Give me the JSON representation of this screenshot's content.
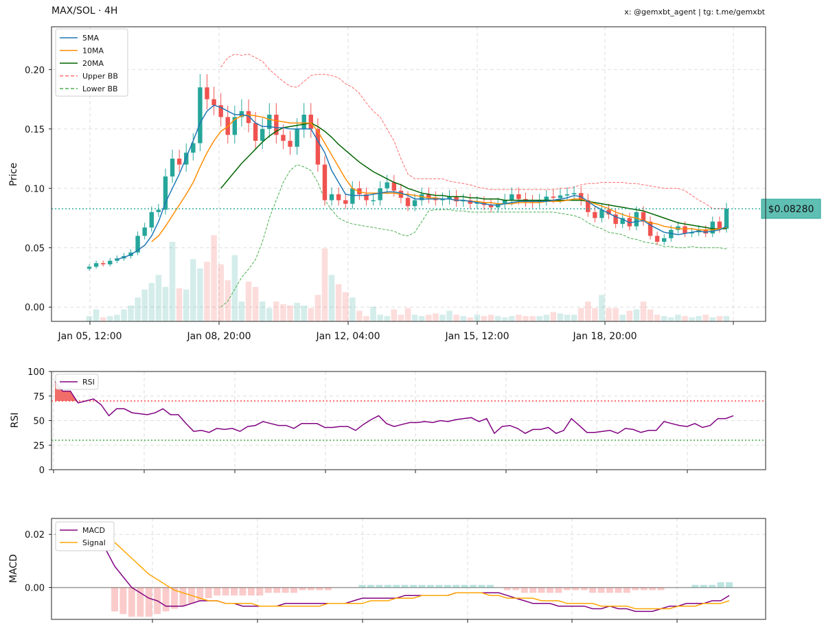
{
  "header": {
    "title": "MAX/SOL · 4H",
    "credit": "x: @gemxbt_agent | tg: t.me/gemxbt"
  },
  "price_tag": "$0.08280",
  "colors": {
    "bull": "#26a69a",
    "bear": "#ef5350",
    "ma5": "#1f77b4",
    "ma10": "#ff8c00",
    "ma20": "#006400",
    "bb_upper": "#ff6b6b",
    "bb_lower": "#4caf50",
    "rsi": "#800080",
    "macd": "#800080",
    "signal": "#ffa500",
    "last_price_line": "#26a69a"
  },
  "chart_data": [
    {
      "type": "candlestick",
      "ylabel": "Price",
      "ylim": [
        -0.012,
        0.236
      ],
      "yticks": [
        0.0,
        0.05,
        0.1,
        0.15,
        0.2
      ],
      "ytick_labels": [
        "0.00",
        "0.05",
        "0.10",
        "0.15",
        "0.20"
      ],
      "xtick_labels": [
        "Jan 05, 12:00",
        "Jan 08, 20:00",
        "Jan 12, 04:00",
        "Jan 15, 12:00",
        "Jan 18, 20:00"
      ],
      "last_price": 0.0828,
      "legend": [
        "5MA",
        "10MA",
        "20MA",
        "Upper BB",
        "Lower BB"
      ],
      "legend_position": "top-left",
      "grid": true,
      "closes": [
        0.034,
        0.037,
        0.036,
        0.039,
        0.041,
        0.043,
        0.046,
        0.06,
        0.067,
        0.08,
        0.082,
        0.11,
        0.125,
        0.12,
        0.13,
        0.138,
        0.185,
        0.175,
        0.17,
        0.16,
        0.145,
        0.16,
        0.165,
        0.155,
        0.14,
        0.15,
        0.162,
        0.145,
        0.14,
        0.135,
        0.15,
        0.162,
        0.15,
        0.12,
        0.09,
        0.095,
        0.09,
        0.087,
        0.1,
        0.095,
        0.09,
        0.09,
        0.1,
        0.105,
        0.098,
        0.092,
        0.085,
        0.09,
        0.095,
        0.092,
        0.09,
        0.091,
        0.093,
        0.089,
        0.09,
        0.087,
        0.088,
        0.086,
        0.084,
        0.087,
        0.09,
        0.095,
        0.091,
        0.089,
        0.088,
        0.09,
        0.093,
        0.092,
        0.094,
        0.095,
        0.096,
        0.09,
        0.08,
        0.075,
        0.082,
        0.078,
        0.07,
        0.075,
        0.068,
        0.08,
        0.072,
        0.06,
        0.055,
        0.058,
        0.065,
        0.068,
        0.062,
        0.063,
        0.065,
        0.062,
        0.072,
        0.066,
        0.0828
      ],
      "ma5": [
        null,
        null,
        null,
        null,
        0.04,
        0.042,
        0.044,
        0.048,
        0.052,
        0.06,
        0.072,
        0.088,
        0.1,
        0.112,
        0.126,
        0.14,
        0.155,
        0.165,
        0.17,
        0.168,
        0.165,
        0.162,
        0.162,
        0.161,
        0.155,
        0.152,
        0.152,
        0.151,
        0.151,
        0.15,
        0.15,
        0.15,
        0.15,
        0.14,
        0.13,
        0.115,
        0.105,
        0.095,
        0.094,
        0.094,
        0.094,
        0.095,
        0.096,
        0.097,
        0.097,
        0.096,
        0.094,
        0.091,
        0.091,
        0.091,
        0.091,
        0.091,
        0.091,
        0.09,
        0.09,
        0.089,
        0.088,
        0.087,
        0.086,
        0.086,
        0.087,
        0.088,
        0.089,
        0.089,
        0.089,
        0.089,
        0.089,
        0.09,
        0.091,
        0.092,
        0.094,
        0.093,
        0.089,
        0.085,
        0.082,
        0.079,
        0.076,
        0.074,
        0.071,
        0.072,
        0.073,
        0.069,
        0.066,
        0.063,
        0.062,
        0.061,
        0.062,
        0.063,
        0.064,
        0.063,
        0.064,
        0.065,
        0.068
      ],
      "ma10": [
        null,
        null,
        null,
        null,
        null,
        null,
        null,
        null,
        null,
        0.055,
        0.06,
        0.068,
        0.077,
        0.086,
        0.095,
        0.105,
        0.118,
        0.13,
        0.14,
        0.148,
        0.152,
        0.158,
        0.161,
        0.162,
        0.161,
        0.16,
        0.158,
        0.157,
        0.156,
        0.155,
        0.155,
        0.155,
        0.155,
        0.148,
        0.138,
        0.128,
        0.118,
        0.108,
        0.1,
        0.097,
        0.096,
        0.096,
        0.096,
        0.096,
        0.096,
        0.095,
        0.095,
        0.094,
        0.093,
        0.092,
        0.092,
        0.091,
        0.091,
        0.09,
        0.09,
        0.089,
        0.089,
        0.088,
        0.088,
        0.087,
        0.087,
        0.087,
        0.088,
        0.088,
        0.088,
        0.088,
        0.089,
        0.089,
        0.089,
        0.09,
        0.091,
        0.091,
        0.089,
        0.087,
        0.085,
        0.083,
        0.08,
        0.078,
        0.076,
        0.075,
        0.073,
        0.071,
        0.07,
        0.068,
        0.067,
        0.066,
        0.066,
        0.066,
        0.065,
        0.065,
        0.065,
        0.066,
        0.067
      ],
      "ma20": [
        null,
        null,
        null,
        null,
        null,
        null,
        null,
        null,
        null,
        null,
        null,
        null,
        null,
        null,
        null,
        null,
        null,
        null,
        null,
        0.1,
        0.107,
        0.114,
        0.121,
        0.127,
        0.133,
        0.139,
        0.144,
        0.148,
        0.151,
        0.152,
        0.153,
        0.154,
        0.155,
        0.152,
        0.148,
        0.143,
        0.137,
        0.132,
        0.127,
        0.122,
        0.118,
        0.114,
        0.111,
        0.108,
        0.105,
        0.103,
        0.1,
        0.098,
        0.096,
        0.095,
        0.094,
        0.094,
        0.093,
        0.093,
        0.093,
        0.092,
        0.092,
        0.091,
        0.091,
        0.091,
        0.09,
        0.09,
        0.09,
        0.09,
        0.09,
        0.09,
        0.09,
        0.09,
        0.09,
        0.09,
        0.09,
        0.09,
        0.089,
        0.088,
        0.087,
        0.086,
        0.085,
        0.084,
        0.083,
        0.082,
        0.081,
        0.079,
        0.077,
        0.075,
        0.073,
        0.071,
        0.07,
        0.069,
        0.068,
        0.067,
        0.066,
        0.066,
        0.066
      ],
      "bb_upper": [
        null,
        null,
        null,
        null,
        null,
        null,
        null,
        null,
        null,
        null,
        null,
        null,
        null,
        null,
        null,
        null,
        null,
        null,
        null,
        0.202,
        0.21,
        0.213,
        0.212,
        0.213,
        0.21,
        0.207,
        0.2,
        0.195,
        0.19,
        0.186,
        0.185,
        0.19,
        0.195,
        0.196,
        0.196,
        0.195,
        0.193,
        0.188,
        0.185,
        0.18,
        0.172,
        0.165,
        0.16,
        0.15,
        0.14,
        0.125,
        0.112,
        0.108,
        0.108,
        0.108,
        0.108,
        0.108,
        0.106,
        0.105,
        0.104,
        0.103,
        0.101,
        0.1,
        0.099,
        0.099,
        0.099,
        0.099,
        0.099,
        0.099,
        0.099,
        0.099,
        0.099,
        0.099,
        0.1,
        0.1,
        0.101,
        0.103,
        0.104,
        0.104,
        0.105,
        0.105,
        0.105,
        0.105,
        0.104,
        0.104,
        0.103,
        0.102,
        0.101,
        0.1,
        0.1,
        0.1,
        0.098,
        0.094,
        0.09,
        0.087,
        0.083,
        0.083,
        0.083
      ],
      "bb_lower": [
        null,
        null,
        null,
        null,
        null,
        null,
        null,
        null,
        null,
        null,
        null,
        null,
        null,
        null,
        null,
        null,
        null,
        null,
        null,
        0.0,
        0.005,
        0.015,
        0.025,
        0.032,
        0.04,
        0.055,
        0.075,
        0.09,
        0.105,
        0.115,
        0.12,
        0.118,
        0.115,
        0.105,
        0.09,
        0.082,
        0.075,
        0.072,
        0.07,
        0.069,
        0.068,
        0.067,
        0.066,
        0.065,
        0.064,
        0.061,
        0.06,
        0.063,
        0.072,
        0.081,
        0.082,
        0.082,
        0.082,
        0.081,
        0.081,
        0.08,
        0.08,
        0.08,
        0.08,
        0.08,
        0.08,
        0.08,
        0.08,
        0.08,
        0.08,
        0.08,
        0.08,
        0.08,
        0.079,
        0.078,
        0.077,
        0.075,
        0.071,
        0.068,
        0.066,
        0.063,
        0.062,
        0.061,
        0.058,
        0.057,
        0.055,
        0.054,
        0.053,
        0.051,
        0.051,
        0.05,
        0.05,
        0.051,
        0.05,
        0.05,
        0.05,
        0.05,
        0.049
      ],
      "volume_overlay": [
        0.04,
        0.09,
        0.03,
        0.04,
        0.05,
        0.09,
        0.12,
        0.18,
        0.24,
        0.29,
        0.35,
        0.26,
        0.6,
        0.25,
        0.24,
        0.47,
        0.4,
        0.45,
        0.65,
        0.43,
        0.31,
        0.5,
        0.15,
        0.3,
        0.26,
        0.15,
        0.1,
        0.15,
        0.13,
        0.12,
        0.14,
        0.12,
        0.1,
        0.2,
        0.55,
        0.35,
        0.28,
        0.22,
        0.18,
        0.08,
        0.04,
        0.11,
        0.05,
        0.04,
        0.09,
        0.05,
        0.1,
        0.05,
        0.04,
        0.05,
        0.06,
        0.05,
        0.08,
        0.05,
        0.04,
        0.03,
        0.05,
        0.04,
        0.05,
        0.04,
        0.03,
        0.04,
        0.05,
        0.04,
        0.04,
        0.04,
        0.05,
        0.07,
        0.06,
        0.05,
        0.05,
        0.1,
        0.15,
        0.1,
        0.2,
        0.1,
        0.1,
        0.05,
        0.08,
        0.09,
        0.15,
        0.09,
        0.05,
        0.04,
        0.03,
        0.05,
        0.04,
        0.03,
        0.04,
        0.05,
        0.03,
        0.04,
        0.04
      ]
    },
    {
      "type": "line",
      "ylabel": "RSI",
      "ylim": [
        0,
        100
      ],
      "yticks": [
        0,
        25,
        50,
        75,
        100
      ],
      "overbought": 70,
      "oversold": 30,
      "legend": [
        "RSI"
      ],
      "legend_position": "top-left",
      "series": [
        {
          "name": "RSI",
          "values": [
            90,
            80,
            80,
            68,
            70,
            72,
            66,
            55,
            62,
            62,
            58,
            57,
            56,
            58,
            62,
            56,
            56,
            47,
            39,
            40,
            38,
            42,
            41,
            42,
            39,
            44,
            45,
            49,
            47,
            45,
            45,
            42,
            47,
            47,
            47,
            43,
            43,
            44,
            44,
            40,
            46,
            51,
            55,
            47,
            44,
            46,
            48,
            48,
            49,
            48,
            50,
            49,
            51,
            52,
            53,
            49,
            52,
            37,
            44,
            45,
            42,
            37,
            41,
            41,
            43,
            37,
            40,
            52,
            45,
            38,
            38,
            39,
            40,
            37,
            42,
            41,
            38,
            40,
            40,
            49,
            47,
            45,
            44,
            47,
            43,
            45,
            52,
            52,
            55
          ]
        }
      ]
    },
    {
      "type": "line",
      "ylabel": "MACD",
      "ylim": [
        -0.012,
        0.026
      ],
      "yticks": [
        0.0,
        0.02
      ],
      "ytick_labels": [
        "0.00",
        "0.02"
      ],
      "legend": [
        "MACD",
        "Signal"
      ],
      "legend_position": "top-left",
      "series": [
        {
          "name": "MACD",
          "values": [
            0.02,
            0.02,
            0.02,
            0.02,
            0.019,
            0.017,
            0.014,
            0.008,
            0.004,
            0.0,
            -0.002,
            -0.004,
            -0.005,
            -0.007,
            -0.007,
            -0.007,
            -0.006,
            -0.005,
            -0.005,
            -0.005,
            -0.006,
            -0.006,
            -0.007,
            -0.007,
            -0.007,
            -0.007,
            -0.007,
            -0.006,
            -0.006,
            -0.006,
            -0.006,
            -0.006,
            -0.006,
            -0.006,
            -0.006,
            -0.005,
            -0.004,
            -0.004,
            -0.004,
            -0.004,
            -0.004,
            -0.003,
            -0.003,
            -0.003,
            -0.003,
            -0.003,
            -0.003,
            -0.002,
            -0.002,
            -0.002,
            -0.002,
            -0.002,
            -0.002,
            -0.003,
            -0.004,
            -0.005,
            -0.006,
            -0.006,
            -0.006,
            -0.007,
            -0.007,
            -0.007,
            -0.007,
            -0.008,
            -0.008,
            -0.007,
            -0.008,
            -0.008,
            -0.009,
            -0.009,
            -0.009,
            -0.008,
            -0.007,
            -0.007,
            -0.006,
            -0.006,
            -0.006,
            -0.005,
            -0.005,
            -0.003
          ]
        },
        {
          "name": "Signal",
          "values": [
            null,
            null,
            null,
            null,
            null,
            null,
            null,
            0.017,
            0.014,
            0.011,
            0.008,
            0.005,
            0.003,
            0.001,
            -0.001,
            -0.002,
            -0.003,
            -0.004,
            -0.005,
            -0.005,
            -0.006,
            -0.006,
            -0.006,
            -0.006,
            -0.007,
            -0.007,
            -0.007,
            -0.007,
            -0.007,
            -0.007,
            -0.007,
            -0.007,
            -0.006,
            -0.006,
            -0.006,
            -0.006,
            -0.006,
            -0.005,
            -0.005,
            -0.005,
            -0.004,
            -0.004,
            -0.004,
            -0.003,
            -0.003,
            -0.003,
            -0.003,
            -0.002,
            -0.002,
            -0.002,
            -0.002,
            -0.003,
            -0.003,
            -0.004,
            -0.004,
            -0.004,
            -0.004,
            -0.005,
            -0.005,
            -0.005,
            -0.006,
            -0.006,
            -0.006,
            -0.006,
            -0.007,
            -0.007,
            -0.007,
            -0.007,
            -0.008,
            -0.008,
            -0.008,
            -0.008,
            -0.008,
            -0.007,
            -0.007,
            -0.007,
            -0.006,
            -0.006,
            -0.006,
            -0.005
          ]
        }
      ],
      "histogram": [
        0,
        0,
        0,
        0,
        0,
        0,
        0,
        -0.009,
        -0.01,
        -0.011,
        -0.011,
        -0.011,
        -0.01,
        -0.009,
        -0.008,
        -0.007,
        -0.006,
        -0.005,
        -0.004,
        -0.003,
        -0.003,
        -0.003,
        -0.003,
        -0.003,
        -0.003,
        -0.002,
        -0.002,
        -0.002,
        -0.002,
        -0.001,
        -0.001,
        -0.001,
        -0.001,
        0,
        0,
        0,
        0.001,
        0.001,
        0.001,
        0.001,
        0.001,
        0.001,
        0.001,
        0.001,
        0.001,
        0.001,
        0.001,
        0.001,
        0.001,
        0.001,
        0.001,
        0.001,
        0,
        -0.001,
        -0.001,
        -0.002,
        -0.002,
        -0.002,
        -0.002,
        -0.002,
        -0.001,
        -0.001,
        -0.001,
        -0.002,
        -0.002,
        -0.002,
        -0.002,
        -0.002,
        -0.001,
        -0.001,
        -0.001,
        -0.001,
        0,
        0,
        0,
        0.001,
        0.001,
        0.001,
        0.002,
        0.002
      ]
    }
  ]
}
